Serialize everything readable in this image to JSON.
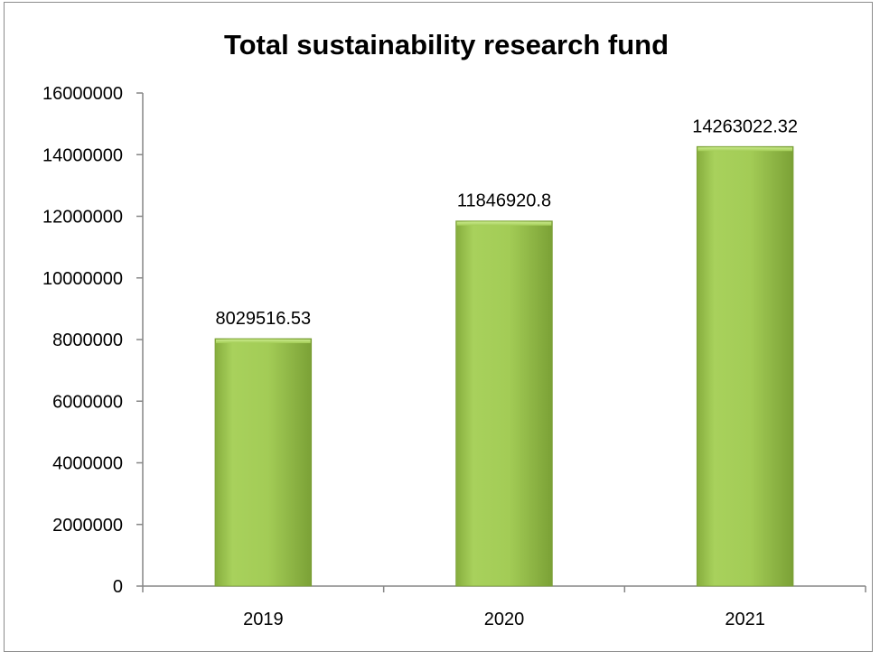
{
  "chart_data": {
    "type": "bar",
    "title": "Total sustainability research fund",
    "xlabel": "",
    "ylabel": "",
    "categories": [
      "2019",
      "2020",
      "2021"
    ],
    "values": [
      8029516.53,
      11846920.8,
      14263022.32
    ],
    "value_labels": [
      "8029516.53",
      "11846920.8",
      "14263022.32"
    ],
    "ylim": [
      0,
      16000000
    ],
    "yticks": [
      0,
      2000000,
      4000000,
      6000000,
      8000000,
      10000000,
      12000000,
      14000000,
      16000000
    ],
    "ytick_labels": [
      "0",
      "2000000",
      "4000000",
      "6000000",
      "8000000",
      "10000000",
      "12000000",
      "14000000",
      "16000000"
    ],
    "grid": false,
    "legend": "none",
    "colors": {
      "bar_light": "#b5dc6a",
      "bar_mid": "#9cc74f",
      "bar_dark": "#7ea53a",
      "axis": "#868686"
    }
  }
}
